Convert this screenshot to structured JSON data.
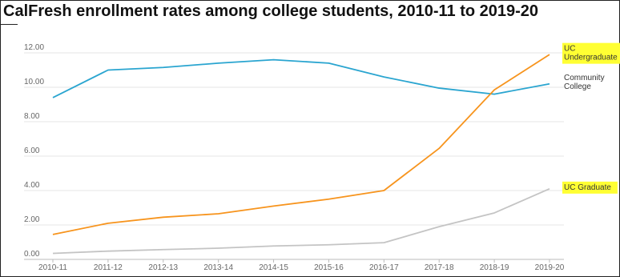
{
  "chart_data": {
    "type": "line",
    "title": "CalFresh enrollment rates among college students, 2010-11 to 2019-20",
    "categories": [
      "2010-11",
      "2011-12",
      "2012-13",
      "2013-14",
      "2014-15",
      "2015-16",
      "2016-17",
      "2017-18",
      "2018-19",
      "2019-20"
    ],
    "ylim": [
      0,
      12
    ],
    "yticks": [
      "0.00",
      "2.00",
      "4.00",
      "6.00",
      "8.00",
      "10.00",
      "12.00"
    ],
    "grid": true,
    "series": [
      {
        "name": "Community College",
        "label_lines": [
          "Community",
          "College"
        ],
        "color": "#2aa5d0",
        "highlight": false,
        "values": [
          9.4,
          11.0,
          11.15,
          11.4,
          11.6,
          11.4,
          10.6,
          9.95,
          9.6,
          10.2
        ]
      },
      {
        "name": "UC Undergraduate",
        "label_lines": [
          "UC",
          "Undergraduate"
        ],
        "color": "#f7941d",
        "highlight": true,
        "values": [
          1.45,
          2.1,
          2.45,
          2.65,
          3.1,
          3.5,
          4.0,
          6.45,
          9.85,
          11.9
        ]
      },
      {
        "name": "UC Graduate",
        "label_lines": [
          "UC Graduate"
        ],
        "color": "#c4c4c4",
        "highlight": true,
        "values": [
          0.35,
          0.48,
          0.57,
          0.65,
          0.78,
          0.85,
          0.97,
          1.9,
          2.7,
          4.1
        ]
      }
    ]
  },
  "colors": {
    "highlight": "#ffff33",
    "grid": "#e6e6e6",
    "axis": "#bbbbbb",
    "tick_text": "#666666",
    "label_text": "#333333"
  }
}
